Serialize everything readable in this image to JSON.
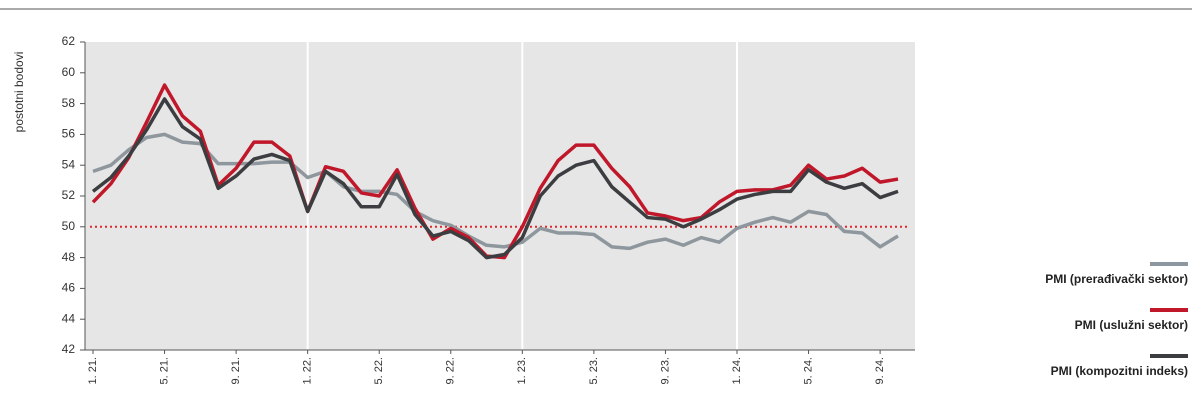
{
  "chart_data": {
    "type": "line",
    "ylabel": "postotni bodovi",
    "categories": [
      "1. 21.",
      null,
      null,
      null,
      "5. 21.",
      null,
      null,
      null,
      "9. 21.",
      null,
      null,
      null,
      "1. 22.",
      null,
      null,
      null,
      "5. 22.",
      null,
      null,
      null,
      "9. 22.",
      null,
      null,
      null,
      "1. 23.",
      null,
      null,
      null,
      "5. 23.",
      null,
      null,
      null,
      "9. 23.",
      null,
      null,
      null,
      "1. 24.",
      null,
      null,
      null,
      "5. 24.",
      null,
      null,
      null,
      "9. 24.",
      null
    ],
    "series": [
      {
        "name": "PMI (prerađivački sektor)",
        "color": "#8e979d",
        "values": [
          53.6,
          54.0,
          55.0,
          55.8,
          56.0,
          55.5,
          55.4,
          54.1,
          54.1,
          54.1,
          54.2,
          54.2,
          53.2,
          53.6,
          52.6,
          52.3,
          52.3,
          52.1,
          51.0,
          50.4,
          50.1,
          49.4,
          48.8,
          48.7,
          49.0,
          49.9,
          49.6,
          49.6,
          49.5,
          48.7,
          48.6,
          49.0,
          49.2,
          48.8,
          49.3,
          49.0,
          49.9,
          50.3,
          50.6,
          50.3,
          51.0,
          50.8,
          49.7,
          49.6,
          48.7,
          49.4
        ]
      },
      {
        "name": "PMI (uslužni sektor)",
        "color": "#c0182a",
        "values": [
          51.6,
          52.8,
          54.5,
          56.8,
          59.2,
          57.2,
          56.2,
          52.7,
          53.8,
          55.5,
          55.5,
          54.6,
          51.0,
          53.9,
          53.6,
          52.2,
          52.0,
          53.7,
          51.2,
          49.2,
          49.9,
          49.3,
          48.1,
          48.0,
          50.0,
          52.5,
          54.3,
          55.3,
          55.3,
          53.8,
          52.6,
          50.9,
          50.7,
          50.4,
          50.6,
          51.6,
          52.3,
          52.4,
          52.4,
          52.7,
          54.0,
          53.1,
          53.3,
          53.8,
          52.9,
          53.1
        ]
      },
      {
        "name": "PMI (kompozitni indeks)",
        "color": "#3b3d40",
        "values": [
          52.3,
          53.2,
          54.6,
          56.3,
          58.3,
          56.5,
          55.7,
          52.5,
          53.3,
          54.4,
          54.7,
          54.3,
          51.0,
          53.6,
          52.8,
          51.3,
          51.3,
          53.4,
          50.8,
          49.4,
          49.7,
          49.1,
          48.0,
          48.2,
          49.3,
          52.0,
          53.3,
          54.0,
          54.3,
          52.6,
          51.6,
          50.6,
          50.5,
          50.0,
          50.5,
          51.1,
          51.8,
          52.1,
          52.3,
          52.3,
          53.7,
          52.9,
          52.5,
          52.8,
          51.9,
          52.3
        ]
      }
    ],
    "ylim": [
      42,
      62
    ],
    "yticks": [
      42,
      44,
      46,
      48,
      50,
      52,
      54,
      56,
      58,
      60,
      62
    ],
    "reference_line": {
      "value": 50,
      "color": "#e0262b"
    },
    "grid": false,
    "legend": "lower right"
  }
}
